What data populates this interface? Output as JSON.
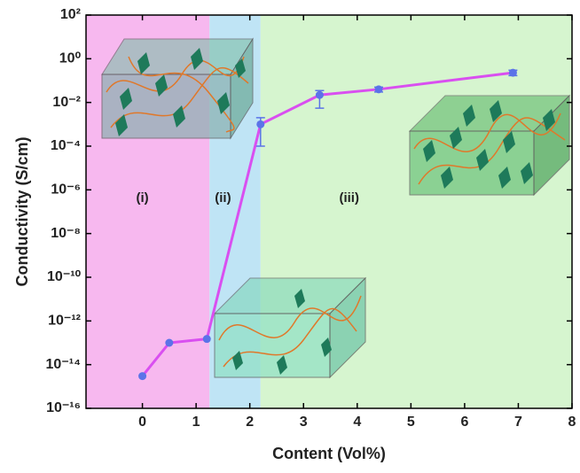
{
  "chart_data": {
    "type": "line",
    "xlabel": "Content (Vol%)",
    "ylabel": "Conductivity (S/cm)",
    "xlim": [
      -1.05,
      8
    ],
    "xticks": [
      0,
      1,
      2,
      3,
      4,
      5,
      6,
      7,
      8
    ],
    "ylim": [
      1e-16,
      100
    ],
    "yscale": "log",
    "yticks": [
      {
        "value": 100,
        "label": "10²"
      },
      {
        "value": 1,
        "label": "10⁰"
      },
      {
        "value": 0.01,
        "label": "10⁻²"
      },
      {
        "value": 0.0001,
        "label": "10⁻⁴"
      },
      {
        "value": 1e-06,
        "label": "10⁻⁶"
      },
      {
        "value": 1e-08,
        "label": "10⁻⁸"
      },
      {
        "value": 1e-10,
        "label": "10⁻¹⁰"
      },
      {
        "value": 1e-12,
        "label": "10⁻¹²"
      },
      {
        "value": 1e-14,
        "label": "10⁻¹⁴"
      },
      {
        "value": 1e-16,
        "label": "10⁻¹⁶"
      }
    ],
    "regions": [
      {
        "label": "(i)",
        "xstart": -1.05,
        "xend": 1.25,
        "label_x": 0,
        "color": "#f7b8ef"
      },
      {
        "label": "(ii)",
        "xstart": 1.25,
        "xend": 2.2,
        "label_x": 1.5,
        "color": "#bfe4f5"
      },
      {
        "label": "(iii)",
        "xstart": 2.2,
        "xend": 8,
        "label_x": 3.85,
        "color": "#d6f5cf"
      }
    ],
    "region_label_y": 4e-07,
    "series": [
      {
        "color": "#d94ff0",
        "marker_color": "#5b73e8",
        "x": [
          0,
          0.5,
          1.2,
          2.2,
          3.3,
          4.4,
          6.9
        ],
        "values": [
          3e-15,
          1e-13,
          1.5e-13,
          0.001,
          0.022,
          0.04,
          0.23
        ],
        "lower": [
          null,
          null,
          null,
          0.0001,
          0.0055,
          0.03,
          0.17
        ],
        "upper": [
          null,
          null,
          null,
          0.002,
          0.035,
          0.05,
          0.3
        ]
      }
    ]
  }
}
